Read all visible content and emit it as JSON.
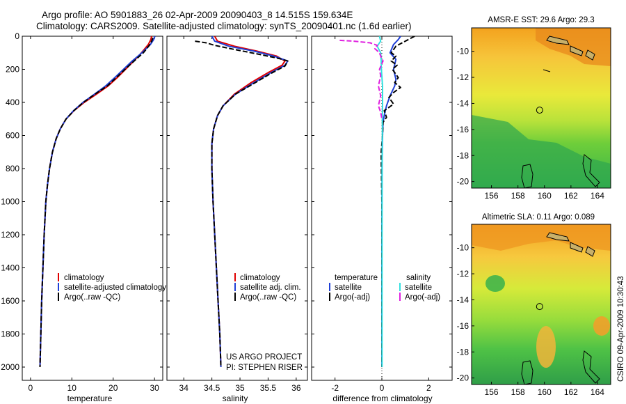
{
  "header": {
    "line1": "Argo profile: AO 5901883_26 02-Apr-2009 20090403_8 14.515S 159.634E",
    "line2": "Climatology: CARS2009. Satellite-adjusted climatology: synTS_20090401.nc (1.6d earlier)"
  },
  "credit": {
    "stamp": "CSIRO 09-Apr-2009 10:30:43",
    "project": "US ARGO PROJECT",
    "pi": "PI: STEPHEN RISER"
  },
  "colors": {
    "climatology": "#e00000",
    "satellite": "#1f3fd6",
    "argo": "#000000",
    "satellite_salinity": "#33e0e0",
    "argo_salinity": "#e020e0"
  },
  "chart_data": [
    {
      "type": "line",
      "panel": "temperature",
      "xlabel": "temperature",
      "xlim": [
        -2,
        32
      ],
      "xticks": [
        0,
        10,
        20,
        30
      ],
      "ylim": [
        0,
        2080
      ],
      "yticks": [
        0,
        200,
        400,
        600,
        800,
        1000,
        1200,
        1400,
        1600,
        1800,
        2000
      ],
      "y_reversed": true,
      "legend": [
        "climatology",
        "satellite-adjusted climatology",
        "Argo(..raw -QC)"
      ],
      "series": [
        {
          "name": "climatology",
          "color": "climatology",
          "points": [
            [
              29.3,
              0
            ],
            [
              29.1,
              20
            ],
            [
              28.5,
              50
            ],
            [
              27.5,
              80
            ],
            [
              26.5,
              110
            ],
            [
              25,
              150
            ],
            [
              23,
              200
            ],
            [
              21,
              250
            ],
            [
              18.8,
              300
            ],
            [
              16,
              350
            ],
            [
              13,
              400
            ],
            [
              10.5,
              450
            ],
            [
              8.6,
              500
            ],
            [
              7.2,
              560
            ],
            [
              6.2,
              620
            ],
            [
              5.3,
              700
            ],
            [
              4.6,
              800
            ],
            [
              4.1,
              900
            ],
            [
              3.7,
              1000
            ],
            [
              3.3,
              1200
            ],
            [
              3,
              1400
            ],
            [
              2.7,
              1600
            ],
            [
              2.5,
              1800
            ],
            [
              2.3,
              2000
            ]
          ]
        },
        {
          "name": "satellite",
          "color": "satellite",
          "points": [
            [
              30.1,
              0
            ],
            [
              29.8,
              20
            ],
            [
              29,
              50
            ],
            [
              27.8,
              80
            ],
            [
              26.5,
              110
            ],
            [
              24.6,
              150
            ],
            [
              22.5,
              200
            ],
            [
              20.4,
              250
            ],
            [
              18.2,
              300
            ],
            [
              15.5,
              350
            ],
            [
              12.7,
              400
            ],
            [
              10.4,
              450
            ],
            [
              8.6,
              500
            ],
            [
              7.2,
              560
            ],
            [
              6.2,
              620
            ],
            [
              5.3,
              700
            ],
            [
              4.6,
              800
            ],
            [
              4.1,
              900
            ],
            [
              3.7,
              1000
            ],
            [
              3.3,
              1200
            ],
            [
              3,
              1400
            ],
            [
              2.7,
              1600
            ],
            [
              2.5,
              1800
            ],
            [
              2.3,
              2000
            ]
          ]
        },
        {
          "name": "Argo",
          "color": "argo",
          "dashed": true,
          "points": [
            [
              29.6,
              10
            ],
            [
              29.3,
              30
            ],
            [
              28.6,
              60
            ],
            [
              27.3,
              100
            ],
            [
              25.5,
              140
            ],
            [
              23.3,
              190
            ],
            [
              21.2,
              240
            ],
            [
              18.6,
              300
            ],
            [
              15.6,
              350
            ],
            [
              12.8,
              400
            ],
            [
              10.5,
              450
            ],
            [
              8.6,
              500
            ],
            [
              7.2,
              560
            ],
            [
              6.2,
              620
            ],
            [
              5.3,
              700
            ],
            [
              4.6,
              800
            ],
            [
              4.1,
              900
            ],
            [
              3.7,
              1000
            ],
            [
              3.3,
              1200
            ],
            [
              3,
              1400
            ],
            [
              2.7,
              1600
            ],
            [
              2.5,
              1800
            ],
            [
              2.3,
              2000
            ]
          ]
        }
      ]
    },
    {
      "type": "line",
      "panel": "salinity",
      "xlabel": "salinity",
      "xlim": [
        33.7,
        36.2
      ],
      "xticks": [
        34,
        34.5,
        35,
        35.5,
        36
      ],
      "ylim": [
        0,
        2080
      ],
      "y_reversed": true,
      "legend": [
        "climatology",
        "satellite adj. clim.",
        "Argo(..raw -QC)"
      ],
      "series": [
        {
          "name": "climatology",
          "color": "climatology",
          "points": [
            [
              34.55,
              0
            ],
            [
              34.6,
              30
            ],
            [
              34.9,
              60
            ],
            [
              35.3,
              90
            ],
            [
              35.65,
              120
            ],
            [
              35.8,
              150
            ],
            [
              35.75,
              175
            ],
            [
              35.5,
              220
            ],
            [
              35.2,
              280
            ],
            [
              34.9,
              350
            ],
            [
              34.7,
              420
            ],
            [
              34.6,
              480
            ],
            [
              34.53,
              560
            ],
            [
              34.5,
              650
            ],
            [
              34.5,
              800
            ],
            [
              34.52,
              1000
            ],
            [
              34.55,
              1200
            ],
            [
              34.58,
              1400
            ],
            [
              34.61,
              1600
            ],
            [
              34.64,
              1800
            ],
            [
              34.66,
              2000
            ]
          ]
        },
        {
          "name": "satellite",
          "color": "satellite",
          "points": [
            [
              34.5,
              0
            ],
            [
              34.55,
              30
            ],
            [
              34.8,
              60
            ],
            [
              35.25,
              90
            ],
            [
              35.6,
              120
            ],
            [
              35.85,
              150
            ],
            [
              35.8,
              175
            ],
            [
              35.55,
              220
            ],
            [
              35.25,
              280
            ],
            [
              34.92,
              350
            ],
            [
              34.7,
              420
            ],
            [
              34.6,
              480
            ],
            [
              34.53,
              560
            ],
            [
              34.5,
              650
            ],
            [
              34.5,
              800
            ],
            [
              34.52,
              1000
            ],
            [
              34.55,
              1200
            ],
            [
              34.58,
              1400
            ],
            [
              34.61,
              1600
            ],
            [
              34.64,
              1800
            ],
            [
              34.66,
              2000
            ]
          ]
        },
        {
          "name": "Argo",
          "color": "argo",
          "dashed": true,
          "points": [
            [
              34.2,
              30
            ],
            [
              34.4,
              40
            ],
            [
              34.55,
              55
            ],
            [
              34.9,
              80
            ],
            [
              35.35,
              110
            ],
            [
              35.7,
              135
            ],
            [
              35.85,
              150
            ],
            [
              35.8,
              180
            ],
            [
              35.55,
              225
            ],
            [
              35.25,
              285
            ],
            [
              34.92,
              350
            ],
            [
              34.7,
              420
            ],
            [
              34.6,
              480
            ],
            [
              34.53,
              560
            ],
            [
              34.5,
              650
            ],
            [
              34.5,
              800
            ],
            [
              34.52,
              1000
            ],
            [
              34.55,
              1200
            ],
            [
              34.58,
              1400
            ],
            [
              34.61,
              1600
            ],
            [
              34.64,
              1800
            ],
            [
              34.66,
              2000
            ]
          ]
        }
      ],
      "notes": [
        "US ARGO PROJECT",
        "PI: STEPHEN RISER"
      ]
    },
    {
      "type": "line",
      "panel": "difference",
      "xlabel": "difference from climatology",
      "xlim": [
        -3,
        3
      ],
      "xticks": [
        -2,
        0,
        2
      ],
      "ylim": [
        0,
        2080
      ],
      "y_reversed": true,
      "legend": {
        "temperature_heading": "temperature",
        "salinity_heading": "salinity",
        "items": [
          "satellite",
          "Argo(-adj)",
          "satellite",
          "Argo(-adj)"
        ]
      },
      "series": [
        {
          "name": "temperature satellite",
          "color": "satellite",
          "points": [
            [
              0.8,
              0
            ],
            [
              0.7,
              20
            ],
            [
              0.5,
              50
            ],
            [
              0.35,
              100
            ],
            [
              0.6,
              140
            ],
            [
              0.5,
              200
            ],
            [
              0.6,
              260
            ],
            [
              0.55,
              300
            ],
            [
              0.35,
              360
            ],
            [
              0.2,
              420
            ],
            [
              0.1,
              480
            ],
            [
              0.05,
              520
            ],
            [
              0.03,
              600
            ],
            [
              0.01,
              800
            ],
            [
              0,
              1200
            ],
            [
              0,
              2000
            ]
          ]
        },
        {
          "name": "temperature Argo",
          "color": "argo",
          "dashed": true,
          "points": [
            [
              1.4,
              0
            ],
            [
              1,
              30
            ],
            [
              0.6,
              60
            ],
            [
              0.4,
              100
            ],
            [
              0.6,
              120
            ],
            [
              0.4,
              150
            ],
            [
              0.65,
              175
            ],
            [
              0.45,
              200
            ],
            [
              0.7,
              250
            ],
            [
              0.55,
              280
            ],
            [
              0.8,
              310
            ],
            [
              0.5,
              340
            ],
            [
              0.3,
              370
            ],
            [
              0.5,
              410
            ],
            [
              0.1,
              450
            ],
            [
              0.2,
              490
            ],
            [
              0.05,
              520
            ],
            [
              0.03,
              600
            ],
            [
              -0.03,
              700
            ],
            [
              -0.02,
              800
            ],
            [
              0,
              1000
            ],
            [
              0,
              1400
            ],
            [
              0,
              2000
            ]
          ]
        },
        {
          "name": "salinity satellite",
          "color": "satellite_salinity",
          "points": [
            [
              -0.1,
              0
            ],
            [
              -0.05,
              30
            ],
            [
              -0.2,
              60
            ],
            [
              -0.05,
              100
            ],
            [
              -0.03,
              150
            ],
            [
              -0.02,
              200
            ],
            [
              0.03,
              300
            ],
            [
              0.03,
              400
            ],
            [
              0.02,
              500
            ],
            [
              0.02,
              600
            ],
            [
              0.01,
              800
            ],
            [
              0.01,
              1200
            ],
            [
              0.01,
              2000
            ]
          ]
        },
        {
          "name": "salinity Argo",
          "color": "argo_salinity",
          "dashed": true,
          "points": [
            [
              -1.8,
              25
            ],
            [
              -1.2,
              30
            ],
            [
              -0.5,
              40
            ],
            [
              -0.2,
              55
            ],
            [
              -0.3,
              75
            ],
            [
              -0.1,
              100
            ],
            [
              -0.05,
              120
            ],
            [
              0.05,
              150
            ],
            [
              -0.1,
              200
            ],
            [
              -0.05,
              240
            ],
            [
              -0.15,
              300
            ],
            [
              -0.05,
              360
            ],
            [
              -0.15,
              420
            ],
            [
              -0.05,
              460
            ],
            [
              0,
              500
            ]
          ]
        }
      ]
    },
    {
      "type": "heatmap",
      "panel": "AMSR-E SST",
      "title": "AMSR-E SST: 29.6 Argo: 29.3",
      "xlim": [
        154.5,
        165
      ],
      "ylim": [
        -20.5,
        -8.2
      ],
      "xticks": [
        156,
        158,
        160,
        162,
        164
      ],
      "yticks": [
        -10,
        -12,
        -14,
        -16,
        -18,
        -20
      ],
      "argo_position": [
        159.634,
        -14.515
      ],
      "regions": [
        {
          "lon": [
            154.5,
            165
          ],
          "lat": [
            -13,
            -8.2
          ],
          "shade": "warm"
        },
        {
          "lon": [
            154.5,
            165
          ],
          "lat": [
            -16,
            -13
          ],
          "shade": "mid"
        },
        {
          "lon": [
            154.5,
            165
          ],
          "lat": [
            -20.5,
            -16
          ],
          "shade": "cool"
        }
      ]
    },
    {
      "type": "heatmap",
      "panel": "Altimetric SLA",
      "title": "Altimetric SLA: 0.11 Argo: 0.089",
      "xlim": [
        154.5,
        165
      ],
      "ylim": [
        -20.5,
        -8.2
      ],
      "xticks": [
        156,
        158,
        160,
        162,
        164
      ],
      "yticks": [
        -10,
        -12,
        -14,
        -16,
        -18,
        -20
      ],
      "argo_position": [
        159.634,
        -14.515
      ],
      "regions": [
        {
          "lon": [
            154.5,
            165
          ],
          "lat": [
            -12,
            -8.2
          ],
          "shade": "warm"
        },
        {
          "lon": [
            154.5,
            165
          ],
          "lat": [
            -16.5,
            -12
          ],
          "shade": "mid"
        },
        {
          "lon": [
            154.5,
            165
          ],
          "lat": [
            -20.5,
            -16.5
          ],
          "shade": "cool"
        }
      ]
    }
  ]
}
